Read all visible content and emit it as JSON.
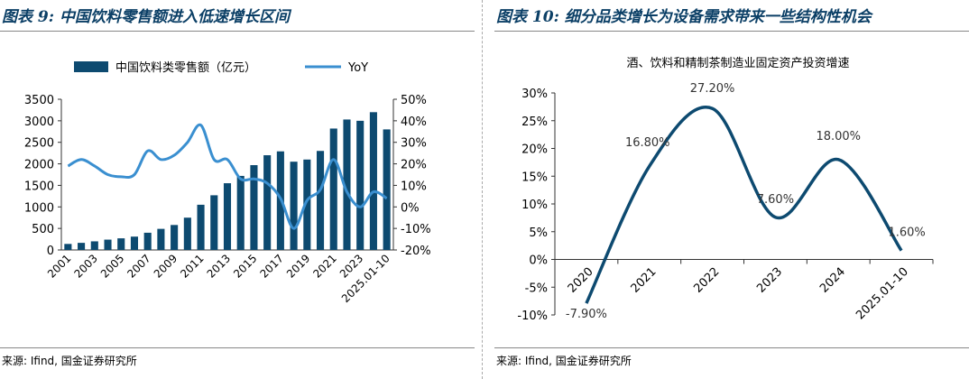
{
  "left": {
    "fig_title": "图表 9:  中国饮料零售额进入低速增长区间",
    "source": "来源:  Ifind,  国金证券研究所",
    "chart_data": {
      "type": "bar",
      "title": "",
      "legend": [
        "中国饮料类零售额（亿元）",
        "YoY"
      ],
      "legend_position": "top",
      "categories": [
        "2001",
        "2002",
        "2003",
        "2004",
        "2005",
        "2006",
        "2007",
        "2008",
        "2009",
        "2010",
        "2011",
        "2012",
        "2013",
        "2014",
        "2015",
        "2016",
        "2017",
        "2018",
        "2019",
        "2020",
        "2021",
        "2022",
        "2023",
        "2024",
        "2025.01-10"
      ],
      "x_tick_labels": [
        "2001",
        "2003",
        "2005",
        "2007",
        "2009",
        "2011",
        "2013",
        "2015",
        "2017",
        "2019",
        "2021",
        "2023",
        "2025.01-10"
      ],
      "series": [
        {
          "name": "中国饮料类零售额（亿元）",
          "type": "bar",
          "axis": "left",
          "values": [
            140,
            165,
            200,
            240,
            270,
            310,
            400,
            490,
            580,
            750,
            1050,
            1270,
            1550,
            1720,
            1970,
            2200,
            2290,
            2050,
            2100,
            2300,
            2820,
            3030,
            3000,
            3200,
            2800
          ]
        },
        {
          "name": "YoY",
          "type": "line",
          "axis": "right",
          "values": [
            19,
            22,
            19,
            15,
            14,
            15,
            26,
            22,
            24,
            30,
            38,
            22,
            22,
            13,
            13,
            11,
            4,
            -10,
            3,
            8,
            22,
            7,
            0,
            7,
            4
          ]
        }
      ],
      "ylim_left": [
        0,
        3500
      ],
      "yticks_left": [
        "0",
        "500",
        "1000",
        "1500",
        "2000",
        "2500",
        "3000",
        "3500"
      ],
      "ylim_right": [
        -20,
        50
      ],
      "yticks_right": [
        "-20%",
        "-10%",
        "0%",
        "10%",
        "20%",
        "30%",
        "40%",
        "50%"
      ],
      "grid": false,
      "colors": {
        "bar": "#0d4a70",
        "line": "#3a8fd0"
      }
    }
  },
  "right": {
    "fig_title": "图表 10:  细分品类增长为设备需求带来一些结构性机会",
    "source": "来源:  Ifind,  国金证券研究所",
    "chart_data": {
      "type": "line",
      "title": "酒、饮料和精制茶制造业固定资产投资增速",
      "x": [
        "2020",
        "2021",
        "2022",
        "2023",
        "2024",
        "2025.01-10"
      ],
      "series": [
        {
          "values": [
            -7.9,
            16.8,
            27.2,
            7.6,
            18.0,
            1.6
          ]
        }
      ],
      "data_labels": [
        "-7.90%",
        "16.80%",
        "27.20%",
        "7.60%",
        "18.00%",
        "1.60%"
      ],
      "ylim": [
        -10,
        30
      ],
      "yticks": [
        "-10%",
        "-5%",
        "0%",
        "5%",
        "10%",
        "15%",
        "20%",
        "25%",
        "30%"
      ],
      "grid": false,
      "colors": {
        "line": "#0d4a70"
      }
    }
  }
}
